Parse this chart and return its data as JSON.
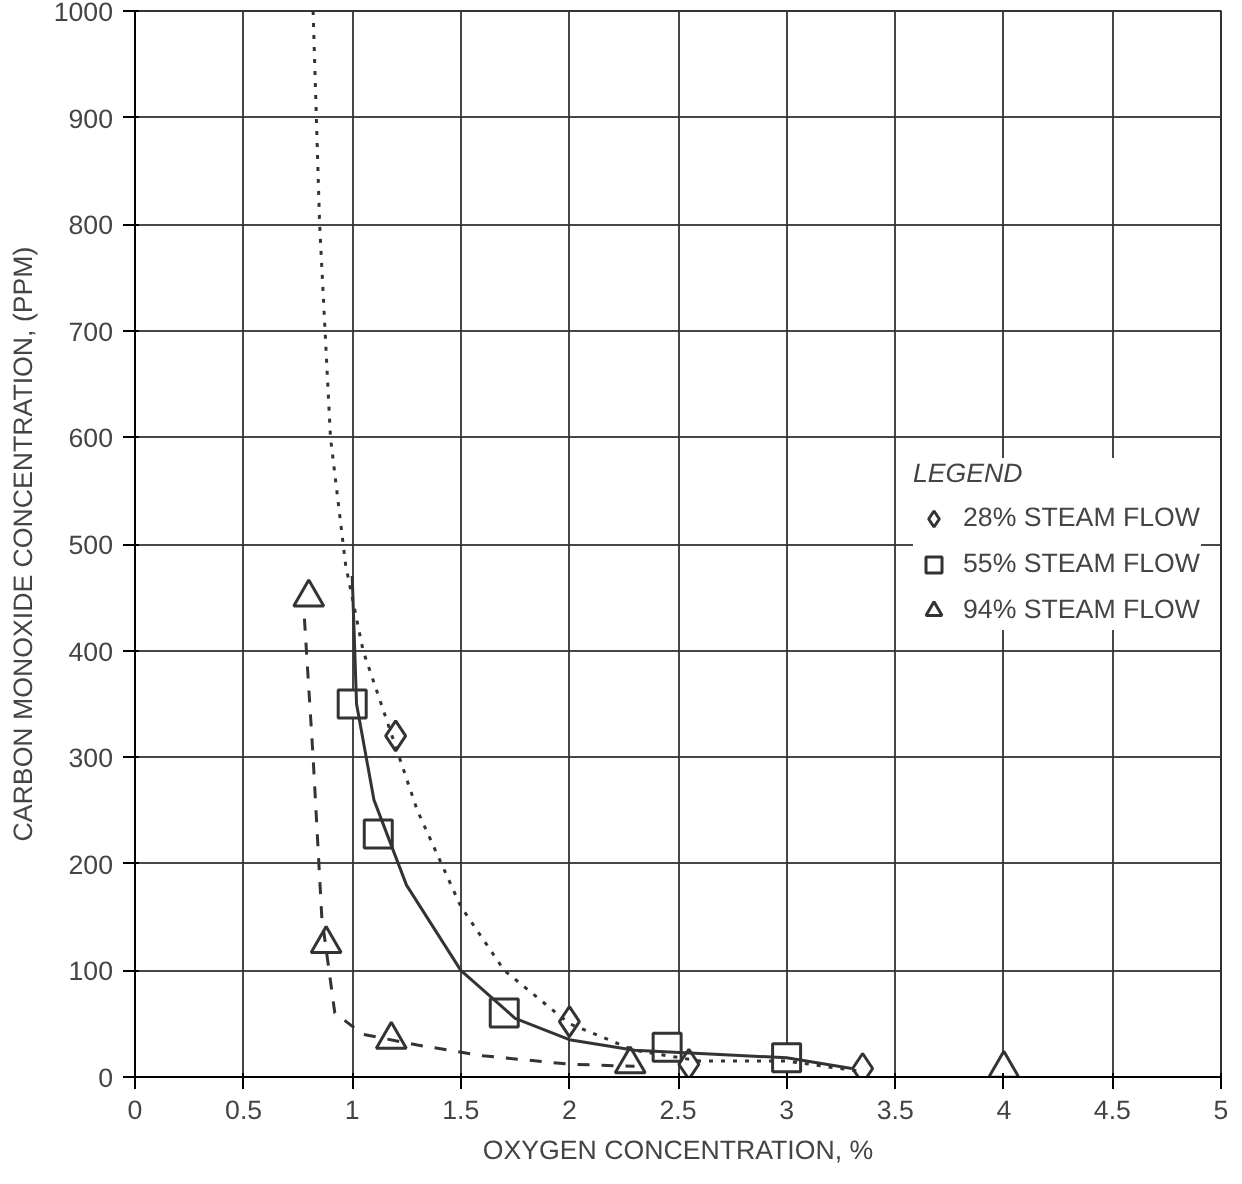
{
  "chart_data": {
    "type": "scatter",
    "xlabel": "OXYGEN CONCENTRATION, %",
    "ylabel": "CARBON MONOXIDE CONCENTRATION, (PPM)",
    "legend_title": "LEGEND",
    "legend": "right",
    "grid": true,
    "xlim": [
      0,
      5
    ],
    "ylim": [
      0,
      1000
    ],
    "xticks": [
      0,
      0.5,
      1,
      1.5,
      2,
      2.5,
      3,
      3.5,
      4,
      4.5,
      5
    ],
    "yticks": [
      0,
      100,
      200,
      300,
      400,
      500,
      600,
      700,
      800,
      900,
      1000
    ],
    "series": [
      {
        "name": "28% STEAM FLOW",
        "color": "#333333",
        "marker": "diamond",
        "x": [
          1.2,
          2.0,
          2.55,
          3.35
        ],
        "values": [
          320,
          52,
          12,
          8
        ]
      },
      {
        "name": "55% STEAM FLOW",
        "color": "#333333",
        "marker": "square",
        "x": [
          1.0,
          1.12,
          1.7,
          2.45,
          3.0
        ],
        "values": [
          350,
          228,
          60,
          28,
          18
        ]
      },
      {
        "name": "94% STEAM FLOW",
        "color": "#333333",
        "marker": "triangle",
        "x": [
          0.8,
          0.88,
          1.18,
          2.28,
          4.0
        ],
        "values": [
          450,
          125,
          35,
          12,
          8
        ]
      },
      {
        "type": "line",
        "color": "#333333",
        "line_style": "dotted",
        "x": [
          0.82,
          0.85,
          0.9,
          0.97,
          1.05,
          1.15,
          1.3,
          1.5,
          1.7,
          2.0,
          2.3,
          2.6,
          3.0,
          3.35
        ],
        "values": [
          1000,
          800,
          600,
          480,
          400,
          340,
          250,
          160,
          100,
          50,
          25,
          15,
          15,
          5
        ]
      },
      {
        "type": "line",
        "color": "#333333",
        "line_style": "solid",
        "x": [
          1.0,
          1.02,
          1.1,
          1.25,
          1.5,
          1.75,
          2.0,
          2.3,
          2.6,
          3.0,
          3.3
        ],
        "values": [
          470,
          350,
          260,
          180,
          100,
          55,
          35,
          25,
          22,
          18,
          8
        ]
      },
      {
        "type": "line",
        "color": "#333333",
        "line_style": "dashed",
        "x": [
          0.78,
          0.82,
          0.86,
          0.92,
          1.05,
          1.3,
          1.6,
          2.0,
          2.3
        ],
        "values": [
          430,
          300,
          150,
          60,
          40,
          30,
          20,
          12,
          10
        ]
      }
    ]
  }
}
